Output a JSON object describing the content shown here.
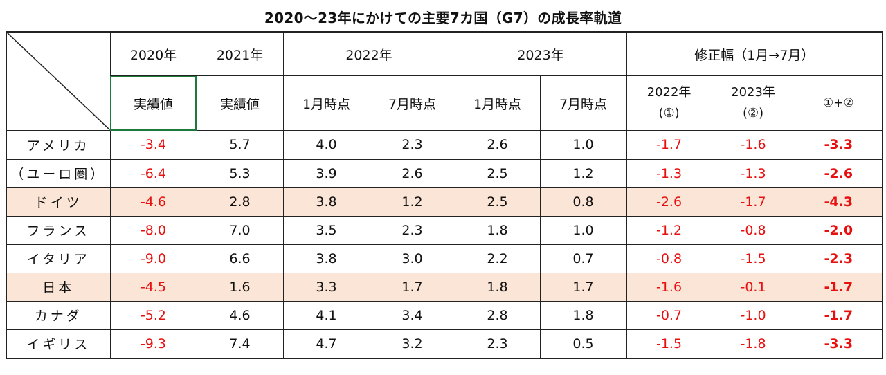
{
  "title": "2020～23年にかけての主要7カ国（G7）の成長率軌道",
  "header": {
    "row1": {
      "y2020": "2020年",
      "y2021": "2021年",
      "y2022": "2022年",
      "y2023": "2023年",
      "revision": "修正幅（1月→7月）"
    },
    "row2": {
      "actual2020": "実績値",
      "actual2021": "実績値",
      "jan2022": "1月時点",
      "jul2022": "7月時点",
      "jan2023": "1月時点",
      "jul2023": "7月時点",
      "rev2022_year": "2022年",
      "rev2022_mark": "(①)",
      "rev2023_year": "2023年",
      "rev2023_mark": "(②)",
      "rev_total": "①+②"
    }
  },
  "rows": [
    {
      "country": "アメリカ",
      "y2020": "-3.4",
      "y2021": "5.7",
      "jan2022": "4.0",
      "jul2022": "2.3",
      "jan2023": "2.6",
      "jul2023": "1.0",
      "rev2022": "-1.7",
      "rev2023": "-1.6",
      "total": "-3.3"
    },
    {
      "country": "（ユーロ圏）",
      "y2020": "-6.4",
      "y2021": "5.3",
      "jan2022": "3.9",
      "jul2022": "2.6",
      "jan2023": "2.5",
      "jul2023": "1.2",
      "rev2022": "-1.3",
      "rev2023": "-1.3",
      "total": "-2.6"
    },
    {
      "country": "ドイツ",
      "y2020": "-4.6",
      "y2021": "2.8",
      "jan2022": "3.8",
      "jul2022": "1.2",
      "jan2023": "2.5",
      "jul2023": "0.8",
      "rev2022": "-2.6",
      "rev2023": "-1.7",
      "total": "-4.3"
    },
    {
      "country": "フランス",
      "y2020": "-8.0",
      "y2021": "7.0",
      "jan2022": "3.5",
      "jul2022": "2.3",
      "jan2023": "1.8",
      "jul2023": "1.0",
      "rev2022": "-1.2",
      "rev2023": "-0.8",
      "total": "-2.0"
    },
    {
      "country": "イタリア",
      "y2020": "-9.0",
      "y2021": "6.6",
      "jan2022": "3.8",
      "jul2022": "3.0",
      "jan2023": "2.2",
      "jul2023": "0.7",
      "rev2022": "-0.8",
      "rev2023": "-1.5",
      "total": "-2.3"
    },
    {
      "country": "日本",
      "y2020": "-4.5",
      "y2021": "1.6",
      "jan2022": "3.3",
      "jul2022": "1.7",
      "jan2023": "1.8",
      "jul2023": "1.7",
      "rev2022": "-1.6",
      "rev2023": "-0.1",
      "total": "-1.7"
    },
    {
      "country": "カナダ",
      "y2020": "-5.2",
      "y2021": "4.6",
      "jan2022": "4.1",
      "jul2022": "3.4",
      "jan2023": "2.8",
      "jul2023": "1.8",
      "rev2022": "-0.7",
      "rev2023": "-1.0",
      "total": "-1.7"
    },
    {
      "country": "イギリス",
      "y2020": "-9.3",
      "y2021": "7.4",
      "jan2022": "4.7",
      "jul2022": "3.2",
      "jan2023": "2.3",
      "jul2023": "0.5",
      "rev2022": "-1.5",
      "rev2023": "-1.8",
      "total": "-3.3"
    }
  ],
  "colors": {
    "negative": "#e8100f",
    "highlight_row": "#fbe5d6",
    "selected_cell_border": "#1e7a3c"
  }
}
